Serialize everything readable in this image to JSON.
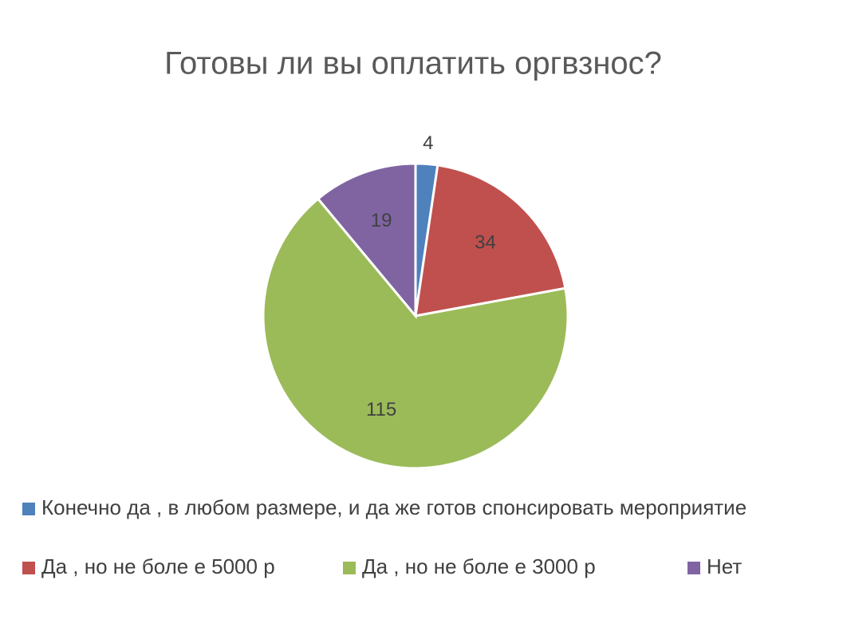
{
  "chart_data": {
    "type": "pie",
    "title": "Готовы ли вы оплатить оргвзнос?",
    "categories": [
      "Конечно да , в любом размере, и да же готов спонсировать мероприятие",
      "Да , но не боле е 5000 р",
      "Да , но не боле е 3000 р",
      "Нет"
    ],
    "values": [
      4,
      34,
      115,
      19
    ],
    "colors": [
      "#4f81bd",
      "#c0504d",
      "#9bbb59",
      "#8064a2"
    ]
  }
}
